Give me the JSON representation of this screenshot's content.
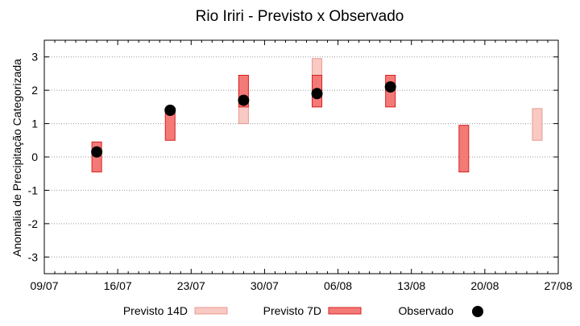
{
  "chart_data": {
    "type": "range-bar",
    "title": "Rio Iriri - Previsto x Observado",
    "xlabel": "",
    "ylabel": "Anomalia de Precipitação Categorizada",
    "x_tick_labels": [
      "09/07",
      "16/07",
      "23/07",
      "30/07",
      "06/08",
      "13/08",
      "20/08",
      "27/08"
    ],
    "x_tick_dates": [
      "2024-07-09",
      "2024-07-16",
      "2024-07-23",
      "2024-07-30",
      "2024-08-06",
      "2024-08-13",
      "2024-08-20",
      "2024-08-27"
    ],
    "xlim": [
      "2024-07-09",
      "2024-08-27"
    ],
    "ylim": [
      -3.5,
      3.5
    ],
    "y_ticks": [
      -3,
      -2,
      -1,
      0,
      1,
      2,
      3
    ],
    "grid": "horizontal dotted",
    "legend_position": "bottom",
    "series": [
      {
        "name": "Previsto 14D",
        "kind": "range",
        "color": "#f9c9c3",
        "edge": "#e89a92",
        "points": [
          {
            "x": "2024-07-28",
            "low": 1.0,
            "high": 2.45
          },
          {
            "x": "2024-08-04",
            "low": 1.5,
            "high": 2.95
          },
          {
            "x": "2024-08-25",
            "low": 0.5,
            "high": 1.45
          }
        ]
      },
      {
        "name": "Previsto 7D",
        "kind": "range",
        "color": "#f47a77",
        "edge": "#d62020",
        "points": [
          {
            "x": "2024-07-14",
            "low": -0.45,
            "high": 0.45
          },
          {
            "x": "2024-07-21",
            "low": 0.5,
            "high": 1.45
          },
          {
            "x": "2024-07-28",
            "low": 1.5,
            "high": 2.45
          },
          {
            "x": "2024-08-04",
            "low": 1.5,
            "high": 2.45
          },
          {
            "x": "2024-08-11",
            "low": 1.5,
            "high": 2.45
          },
          {
            "x": "2024-08-18",
            "low": -0.45,
            "high": 0.95
          }
        ]
      },
      {
        "name": "Observado",
        "kind": "point",
        "color": "#000000",
        "points": [
          {
            "x": "2024-07-14",
            "y": 0.15
          },
          {
            "x": "2024-07-21",
            "y": 1.4
          },
          {
            "x": "2024-07-28",
            "y": 1.7
          },
          {
            "x": "2024-08-04",
            "y": 1.9
          },
          {
            "x": "2024-08-11",
            "y": 2.1
          }
        ]
      }
    ]
  }
}
